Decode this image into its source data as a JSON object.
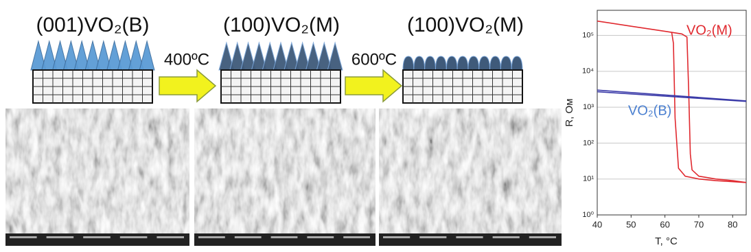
{
  "diagram": {
    "stages": [
      {
        "title": "(001)VO₂(B)"
      },
      {
        "title": "(100)VO₂(M)"
      },
      {
        "title": "(100)VO₂(M)"
      }
    ],
    "steps": [
      {
        "label": "400ºC"
      },
      {
        "label": "600ºC"
      }
    ]
  },
  "chart_data": {
    "type": "line",
    "log_y": true,
    "grid": true,
    "xlabel": "T, °C",
    "ylabel": "R, Ом",
    "xlim": [
      40,
      84
    ],
    "ylim": [
      1,
      500000
    ],
    "xticks": [
      40,
      50,
      60,
      70,
      80
    ],
    "yticks": [
      {
        "value": 1,
        "label": "10⁰"
      },
      {
        "value": 10,
        "label": "10¹"
      },
      {
        "value": 100,
        "label": "10²"
      },
      {
        "value": 1000,
        "label": "10³"
      },
      {
        "value": 10000,
        "label": "10⁴"
      },
      {
        "value": 100000,
        "label": "10⁵"
      }
    ],
    "series": [
      {
        "color": "#e0282e",
        "x": [
          40,
          50,
          60,
          65,
          66.5,
          67,
          67.5,
          68,
          70,
          75,
          80,
          84
        ],
        "values": [
          250000,
          180000,
          130000,
          110000,
          90000,
          3000,
          50,
          18,
          12,
          10,
          9,
          8
        ]
      },
      {
        "color": "#e0282e",
        "x": [
          62,
          62.5,
          63,
          64,
          66,
          70,
          75,
          84
        ],
        "values": [
          120000,
          60000,
          500,
          20,
          12,
          10,
          9,
          8
        ]
      },
      {
        "color": "#3a3aa8",
        "x": [
          40,
          84
        ],
        "values": [
          3000,
          1500
        ]
      },
      {
        "color": "#3a3aa8",
        "x": [
          40,
          84
        ],
        "values": [
          2700,
          1450
        ]
      }
    ],
    "annotations": [
      {
        "text": "VO₂(M)",
        "color": "#e0282e"
      },
      {
        "text": "VO₂(B)",
        "color": "#4a7fd0"
      }
    ]
  }
}
